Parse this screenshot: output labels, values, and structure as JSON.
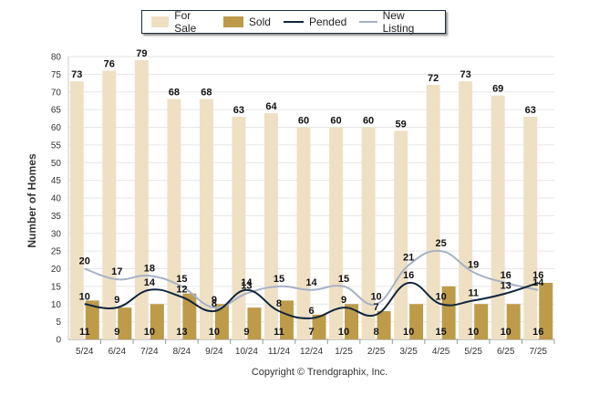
{
  "chart_data": {
    "type": "bar",
    "ylabel": "Number of Homes",
    "ylim": [
      0,
      80
    ],
    "ytick_step": 5,
    "categories": [
      "5/24",
      "6/24",
      "7/24",
      "8/24",
      "9/24",
      "10/24",
      "11/24",
      "12/24",
      "1/25",
      "2/25",
      "3/25",
      "4/25",
      "5/25",
      "6/25",
      "7/25"
    ],
    "series": [
      {
        "name": "For Sale",
        "kind": "bar",
        "color": "#efe0c4",
        "values": [
          73,
          76,
          79,
          68,
          68,
          63,
          64,
          60,
          60,
          60,
          59,
          72,
          73,
          69,
          63
        ]
      },
      {
        "name": "Sold",
        "kind": "bar",
        "color": "#bd9b49",
        "values": [
          11,
          9,
          10,
          13,
          10,
          9,
          11,
          7,
          10,
          8,
          10,
          15,
          10,
          10,
          16
        ]
      },
      {
        "name": "Pended",
        "kind": "line",
        "color": "#10263d",
        "values": [
          10,
          9,
          14,
          12,
          8,
          14,
          8,
          6,
          9,
          7,
          16,
          10,
          11,
          13,
          16
        ]
      },
      {
        "name": "New Listing",
        "kind": "line",
        "color": "#a7b1c6",
        "values": [
          20,
          17,
          18,
          15,
          9,
          13,
          15,
          14,
          15,
          10,
          21,
          25,
          19,
          16,
          14
        ]
      }
    ],
    "legend_position": "top-center",
    "grid": true
  },
  "footer": {
    "copyright": "Copyright © Trendgraphix, Inc."
  }
}
